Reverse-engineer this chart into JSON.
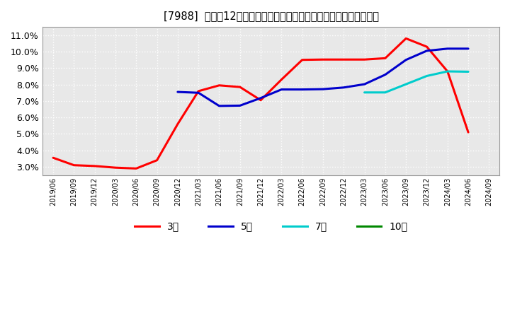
{
  "title": "[7988]  売上高12か月移動合計の対前年同期増減率の標準偏差の推移",
  "ylim": [
    0.025,
    0.115
  ],
  "yticks": [
    0.03,
    0.04,
    0.05,
    0.06,
    0.07,
    0.08,
    0.09,
    0.1,
    0.11
  ],
  "background_color": "#ffffff",
  "plot_bg_color": "#e8e8e8",
  "grid_color": "#ffffff",
  "series_3": {
    "color": "#ff0000",
    "x": [
      0,
      1,
      2,
      3,
      4,
      5,
      6,
      7,
      8,
      9,
      10,
      11,
      12,
      13,
      14,
      15,
      16,
      17,
      18,
      19,
      20
    ],
    "y": [
      0.0355,
      0.031,
      0.0305,
      0.0295,
      0.029,
      0.034,
      0.056,
      0.076,
      0.0795,
      0.0785,
      0.0705,
      0.083,
      0.095,
      0.0952,
      0.0952,
      0.0952,
      0.096,
      0.108,
      0.103,
      0.088,
      0.051
    ]
  },
  "series_5": {
    "color": "#0000cc",
    "x": [
      6,
      7,
      8,
      9,
      10,
      11,
      12,
      13,
      14,
      15,
      16,
      17,
      18,
      19,
      20
    ],
    "y": [
      0.0755,
      0.075,
      0.067,
      0.0672,
      0.0718,
      0.077,
      0.077,
      0.0772,
      0.0782,
      0.0802,
      0.086,
      0.095,
      0.1005,
      0.1018,
      0.1018
    ]
  },
  "series_7": {
    "color": "#00cccc",
    "x": [
      15,
      16,
      17,
      18,
      19,
      20
    ],
    "y": [
      0.0752,
      0.0752,
      0.0802,
      0.0852,
      0.088,
      0.0878
    ]
  },
  "series_10": {
    "color": "#008800",
    "x": [],
    "y": []
  },
  "xtick_labels": [
    "2019/06",
    "2019/09",
    "2019/12",
    "2020/03",
    "2020/06",
    "2020/09",
    "2020/12",
    "2021/03",
    "2021/06",
    "2021/09",
    "2021/12",
    "2022/03",
    "2022/06",
    "2022/09",
    "2022/12",
    "2023/03",
    "2023/06",
    "2023/09",
    "2023/12",
    "2024/03",
    "2024/06",
    "2024/09"
  ],
  "legend_labels": [
    "3年",
    "5年",
    "7年",
    "10年"
  ],
  "legend_colors": [
    "#ff0000",
    "#0000cc",
    "#00cccc",
    "#008800"
  ]
}
